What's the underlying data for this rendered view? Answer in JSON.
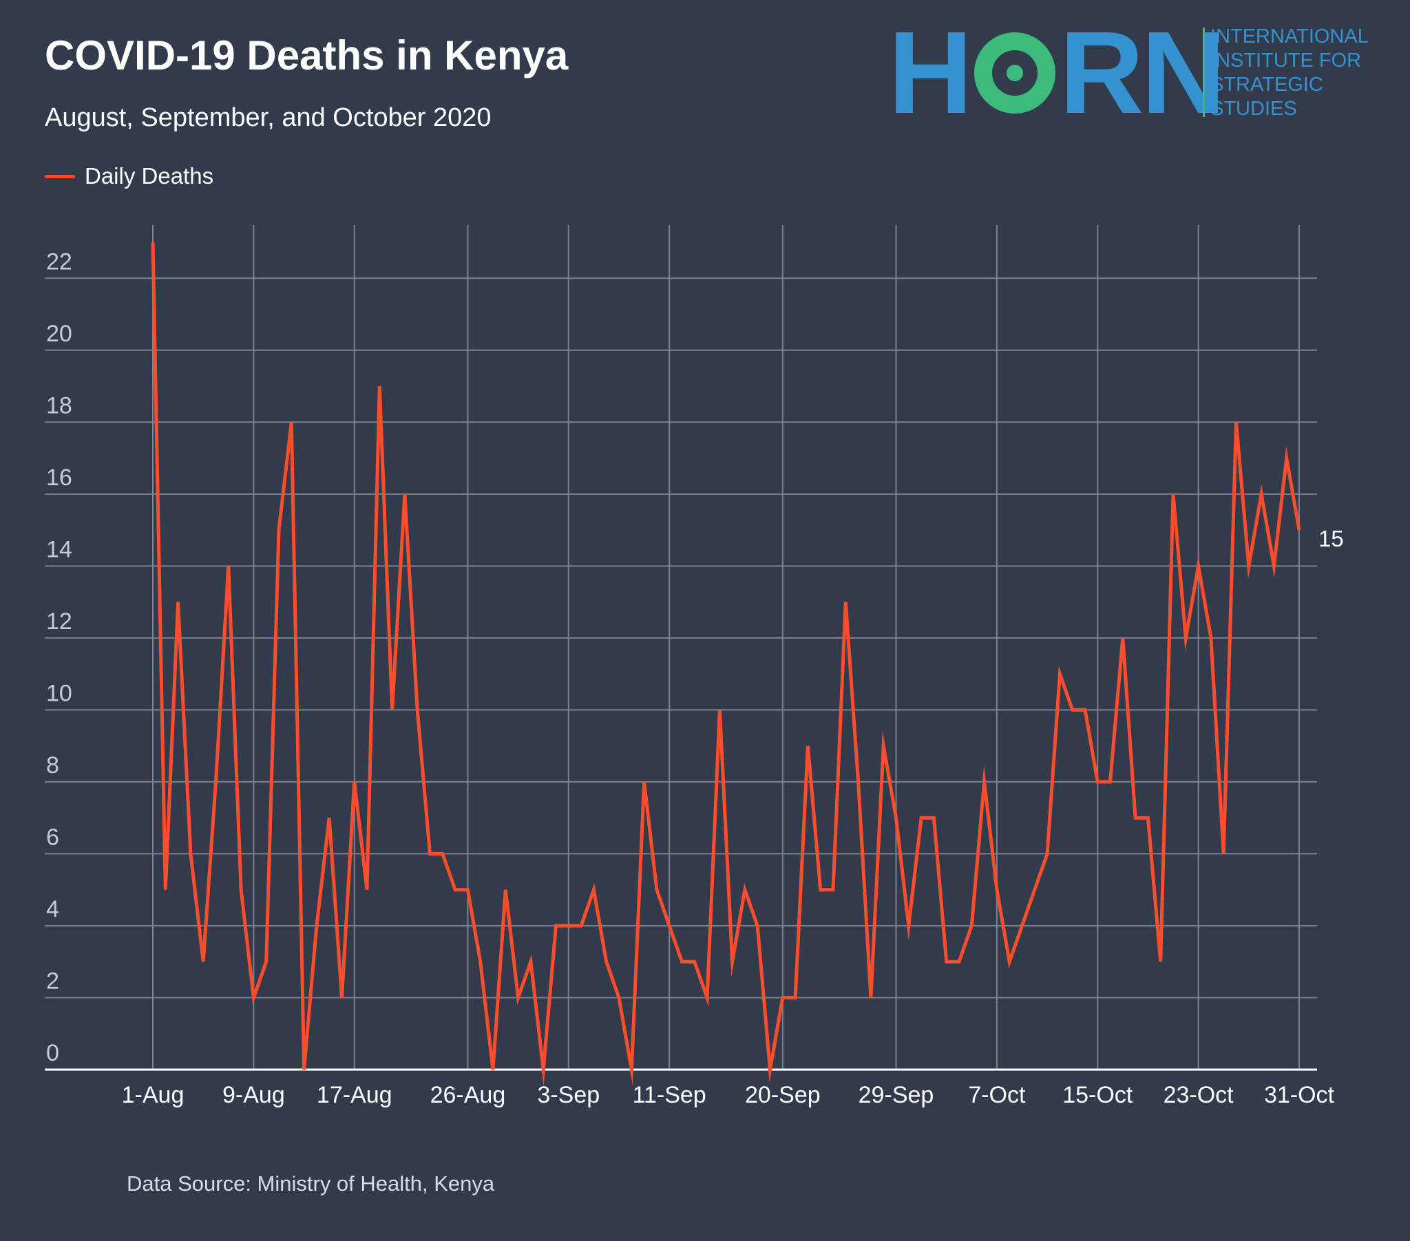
{
  "header": {
    "title": "COVID-19 Deaths in Kenya",
    "subtitle": "August, September, and October 2020"
  },
  "logo": {
    "letters": [
      "H",
      "O",
      "R",
      "N"
    ],
    "tagline": [
      "INTERNATIONAL",
      "INSTITUTE FOR",
      "STRATEGIC",
      "STUDIES"
    ],
    "blue": "#3591cf",
    "green": "#3dbb7a"
  },
  "legend": {
    "label": "Daily Deaths",
    "color": "#fa4d2b"
  },
  "footer": {
    "source": "Data Source: Ministry of Health, Kenya"
  },
  "colors": {
    "background": "#323b4c",
    "grid": "#7b8290",
    "axis": "#ffffff",
    "line": "#fa4d2b",
    "tick_label": "#c7ccd4",
    "x_tick_label": "#ffffff"
  },
  "chart_data": {
    "type": "line",
    "title": "COVID-19 Deaths in Kenya",
    "subtitle": "August, September, and October 2020",
    "xlabel": "",
    "ylabel": "",
    "x_start_date": "1-Aug",
    "x_ticks": [
      "1-Aug",
      "9-Aug",
      "17-Aug",
      "26-Aug",
      "3-Sep",
      "11-Sep",
      "20-Sep",
      "29-Sep",
      "7-Oct",
      "15-Oct",
      "23-Oct",
      "31-Oct"
    ],
    "x_tick_index": [
      0,
      8,
      16,
      25,
      33,
      41,
      50,
      59,
      67,
      75,
      83,
      91
    ],
    "y_ticks": [
      0,
      2,
      4,
      6,
      8,
      10,
      12,
      14,
      16,
      18,
      20,
      22
    ],
    "ylim": [
      0,
      23
    ],
    "grid": true,
    "legend_position": "top-left",
    "end_label": "15",
    "series": [
      {
        "name": "Daily Deaths",
        "color": "#fa4d2b",
        "values": [
          23,
          5,
          13,
          6,
          3,
          8,
          14,
          5,
          2,
          3,
          15,
          18,
          0,
          4,
          7,
          2,
          8,
          5,
          19,
          10,
          16,
          10,
          6,
          6,
          5,
          5,
          3,
          0,
          5,
          2,
          3,
          0,
          4,
          4,
          4,
          5,
          3,
          2,
          0,
          8,
          5,
          4,
          3,
          3,
          2,
          10,
          3,
          5,
          4,
          0,
          2,
          2,
          9,
          5,
          5,
          13,
          8,
          2,
          9,
          7,
          4,
          7,
          7,
          3,
          3,
          4,
          8,
          5,
          3,
          4,
          5,
          6,
          11,
          10,
          10,
          8,
          8,
          12,
          7,
          7,
          3,
          16,
          12,
          14,
          12,
          6,
          18,
          14,
          16,
          14,
          17,
          15
        ]
      }
    ]
  }
}
